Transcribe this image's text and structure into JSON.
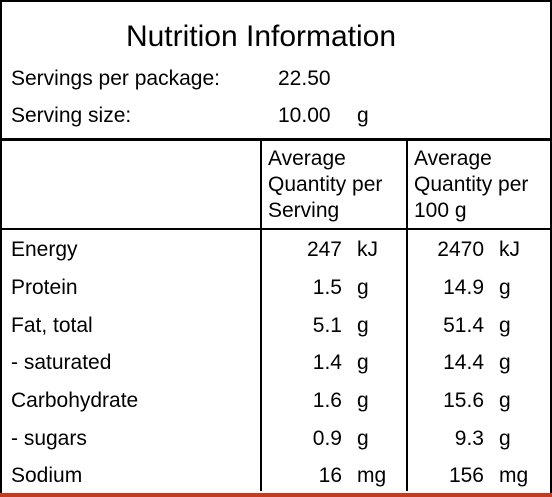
{
  "title": "Nutrition Information",
  "servings_per_package": {
    "label": "Servings per package:",
    "value": "22.50"
  },
  "serving_size": {
    "label": "Serving size:",
    "value": "10.00",
    "unit": "g"
  },
  "columns": {
    "per_serving": [
      "Average",
      "Quantity per",
      "Serving"
    ],
    "per_100g": [
      "Average",
      "Quantity per",
      "100 g"
    ]
  },
  "rows": [
    {
      "name": "Energy",
      "serving": "247",
      "serving_unit": "kJ",
      "per100": "2470",
      "per100_unit": "kJ"
    },
    {
      "name": "Protein",
      "serving": "1.5",
      "serving_unit": "g",
      "per100": "14.9",
      "per100_unit": "g"
    },
    {
      "name": "Fat, total",
      "serving": "5.1",
      "serving_unit": "g",
      "per100": "51.4",
      "per100_unit": "g"
    },
    {
      "name": "- saturated",
      "serving": "1.4",
      "serving_unit": "g",
      "per100": "14.4",
      "per100_unit": "g"
    },
    {
      "name": "Carbohydrate",
      "serving": "1.6",
      "serving_unit": "g",
      "per100": "15.6",
      "per100_unit": "g"
    },
    {
      "name": "- sugars",
      "serving": "0.9",
      "serving_unit": "g",
      "per100": "9.3",
      "per100_unit": "g"
    },
    {
      "name": "Sodium",
      "serving": "16",
      "serving_unit": "mg",
      "per100": "156",
      "per100_unit": "mg"
    }
  ],
  "colors": {
    "border": "#000000",
    "background": "#ffffff",
    "bottom_accent": "#c23b22"
  }
}
